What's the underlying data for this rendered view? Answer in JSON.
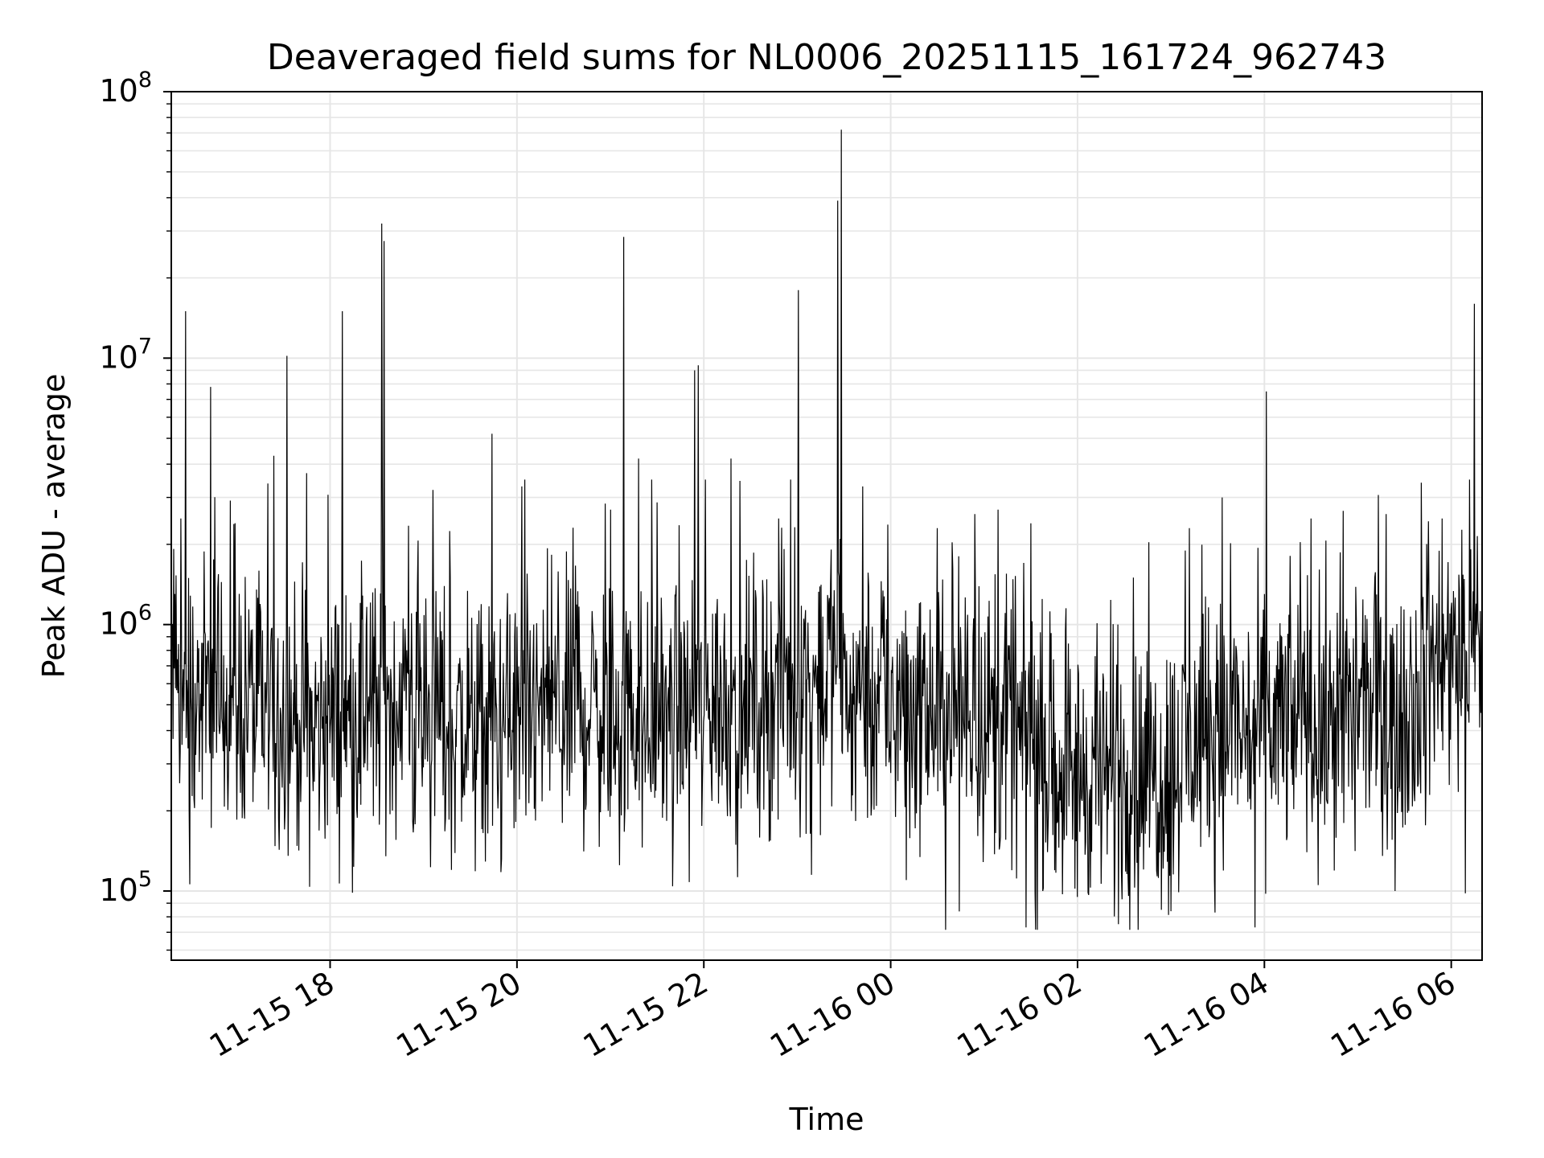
{
  "chart_data": {
    "type": "line",
    "title": "Deaveraged field sums for NL0006_20251115_161724_962743",
    "xlabel": "Time",
    "ylabel": "Peak ADU - average",
    "yscale": "log",
    "ylim": [
      55000,
      100000000
    ],
    "xlim_hours": [
      16.3,
      30.33
    ],
    "grid": true,
    "legend": "none",
    "line_color": "#000000",
    "x_ticks": [
      {
        "label": "11-15 18",
        "hours": 18
      },
      {
        "label": "11-15 20",
        "hours": 20
      },
      {
        "label": "11-15 22",
        "hours": 22
      },
      {
        "label": "11-16 00",
        "hours": 24
      },
      {
        "label": "11-16 02",
        "hours": 26
      },
      {
        "label": "11-16 04",
        "hours": 28
      },
      {
        "label": "11-16 06",
        "hours": 30
      }
    ],
    "y_ticks": [
      {
        "base": "10",
        "exp": "5",
        "value": 100000
      },
      {
        "base": "10",
        "exp": "6",
        "value": 1000000
      },
      {
        "base": "10",
        "exp": "7",
        "value": 10000000
      },
      {
        "base": "10",
        "exp": "8",
        "value": 100000000
      }
    ],
    "baseline_profile": [
      {
        "hours": 16.3,
        "value": 650000
      },
      {
        "hours": 16.6,
        "value": 520000
      },
      {
        "hours": 17.0,
        "value": 550000
      },
      {
        "hours": 17.8,
        "value": 420000
      },
      {
        "hours": 18.5,
        "value": 480000
      },
      {
        "hours": 19.0,
        "value": 520000
      },
      {
        "hours": 19.6,
        "value": 380000
      },
      {
        "hours": 20.5,
        "value": 500000
      },
      {
        "hours": 21.5,
        "value": 450000
      },
      {
        "hours": 22.5,
        "value": 520000
      },
      {
        "hours": 23.3,
        "value": 700000
      },
      {
        "hours": 24.0,
        "value": 480000
      },
      {
        "hours": 25.0,
        "value": 460000
      },
      {
        "hours": 26.0,
        "value": 280000
      },
      {
        "hours": 26.7,
        "value": 270000
      },
      {
        "hours": 27.5,
        "value": 380000
      },
      {
        "hours": 28.5,
        "value": 450000
      },
      {
        "hours": 29.5,
        "value": 520000
      },
      {
        "hours": 30.33,
        "value": 950000
      }
    ],
    "spikes": [
      {
        "hours": 16.4,
        "value": 2500000
      },
      {
        "hours": 16.45,
        "value": 15000000
      },
      {
        "hours": 16.72,
        "value": 7800000
      },
      {
        "hours": 17.4,
        "value": 4300000
      },
      {
        "hours": 17.54,
        "value": 10200000
      },
      {
        "hours": 17.75,
        "value": 3700000
      },
      {
        "hours": 18.13,
        "value": 15000000
      },
      {
        "hours": 18.55,
        "value": 32000000
      },
      {
        "hours": 18.58,
        "value": 27500000
      },
      {
        "hours": 19.1,
        "value": 3200000
      },
      {
        "hours": 19.73,
        "value": 5200000
      },
      {
        "hours": 20.05,
        "value": 3300000
      },
      {
        "hours": 21.0,
        "value": 2700000
      },
      {
        "hours": 21.14,
        "value": 28500000
      },
      {
        "hours": 21.3,
        "value": 4200000
      },
      {
        "hours": 21.9,
        "value": 9000000
      },
      {
        "hours": 21.94,
        "value": 9400000
      },
      {
        "hours": 22.29,
        "value": 4200000
      },
      {
        "hours": 22.8,
        "value": 2500000
      },
      {
        "hours": 23.01,
        "value": 18000000
      },
      {
        "hours": 23.43,
        "value": 39000000
      },
      {
        "hours": 23.47,
        "value": 72000000
      },
      {
        "hours": 23.7,
        "value": 3300000
      },
      {
        "hours": 24.5,
        "value": 2300000
      },
      {
        "hours": 24.9,
        "value": 2600000
      },
      {
        "hours": 25.15,
        "value": 2700000
      },
      {
        "hours": 25.5,
        "value": 2400000
      },
      {
        "hours": 26.6,
        "value": 1500000
      },
      {
        "hours": 27.2,
        "value": 2300000
      },
      {
        "hours": 27.55,
        "value": 3000000
      },
      {
        "hours": 28.02,
        "value": 7500000
      },
      {
        "hours": 28.5,
        "value": 2500000
      },
      {
        "hours": 29.3,
        "value": 2600000
      },
      {
        "hours": 29.9,
        "value": 2500000
      },
      {
        "hours": 30.25,
        "value": 16000000
      }
    ],
    "dips": [
      {
        "hours": 16.5,
        "value": 106000
      },
      {
        "hours": 18.6,
        "value": 135000
      },
      {
        "hours": 19.3,
        "value": 120000
      },
      {
        "hours": 21.1,
        "value": 125000
      },
      {
        "hours": 23.15,
        "value": 115000
      },
      {
        "hours": 25.45,
        "value": 73000
      },
      {
        "hours": 26.0,
        "value": 95000
      },
      {
        "hours": 26.9,
        "value": 85000
      },
      {
        "hours": 27.0,
        "value": 84000
      },
      {
        "hours": 27.9,
        "value": 73000
      },
      {
        "hours": 29.4,
        "value": 100000
      },
      {
        "hours": 30.15,
        "value": 98000
      }
    ],
    "n_samples": 2200
  }
}
